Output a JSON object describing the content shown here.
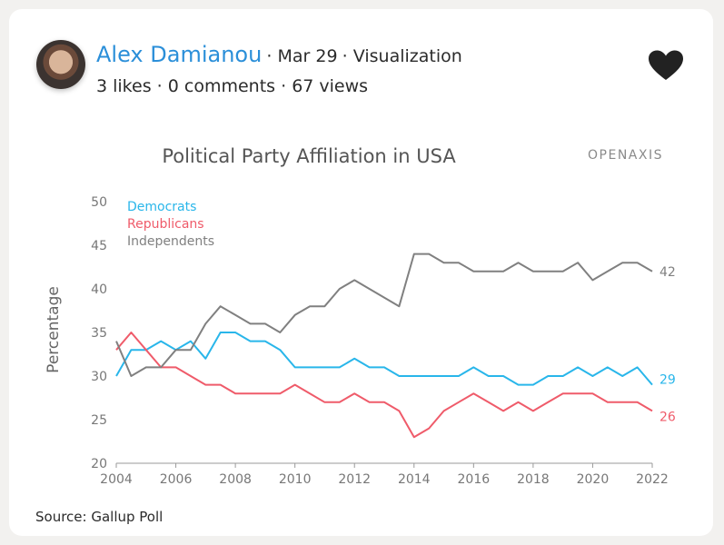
{
  "post": {
    "author": "Alex Damianou",
    "date": "Mar 29",
    "category": "Visualization",
    "likes": "3 likes",
    "comments": "0 comments",
    "views": "67 views",
    "source": "Source: Gallup Poll"
  },
  "icons": {
    "avatar": "author-avatar",
    "like": "heart-icon"
  },
  "colors": {
    "author_link": "#2b8fd9",
    "democrats": "#29b6ea",
    "republicans": "#ef5b6a",
    "independents": "#808080",
    "heart": "#222222"
  },
  "chart_data": {
    "type": "line",
    "title": "Political Party Affiliation in USA",
    "brand": "OPENAXIS",
    "xlabel": "",
    "ylabel": "Percentage",
    "xlim": [
      2004,
      2022
    ],
    "ylim": [
      20,
      50
    ],
    "xticks": [
      "2004",
      "2006",
      "2008",
      "2010",
      "2012",
      "2014",
      "2016",
      "2018",
      "2020",
      "2022"
    ],
    "yticks": [
      "20",
      "25",
      "30",
      "35",
      "40",
      "45",
      "50"
    ],
    "legend_position": "top-left",
    "x": [
      2004,
      2004.5,
      2005,
      2005.5,
      2006,
      2006.5,
      2007,
      2007.5,
      2008,
      2008.5,
      2009,
      2009.5,
      2010,
      2010.5,
      2011,
      2011.5,
      2012,
      2012.5,
      2013,
      2013.5,
      2014,
      2014.5,
      2015,
      2015.5,
      2016,
      2016.5,
      2017,
      2017.5,
      2018,
      2018.5,
      2019,
      2019.5,
      2020,
      2020.5,
      2021,
      2021.5,
      2022
    ],
    "series": [
      {
        "name": "Democrats",
        "color": "#29b6ea",
        "end_label": "29",
        "values": [
          30,
          33,
          33,
          34,
          33,
          34,
          32,
          35,
          35,
          34,
          34,
          33,
          31,
          31,
          31,
          31,
          32,
          31,
          31,
          30,
          30,
          30,
          30,
          30,
          31,
          30,
          30,
          29,
          29,
          30,
          30,
          31,
          30,
          31,
          30,
          31,
          29
        ]
      },
      {
        "name": "Republicans",
        "color": "#ef5b6a",
        "end_label": "26",
        "values": [
          33,
          35,
          33,
          31,
          31,
          30,
          29,
          29,
          28,
          28,
          28,
          28,
          29,
          28,
          27,
          27,
          28,
          27,
          27,
          26,
          23,
          24,
          26,
          27,
          28,
          27,
          26,
          27,
          26,
          27,
          28,
          28,
          28,
          27,
          27,
          27,
          26
        ]
      },
      {
        "name": "Independents",
        "color": "#808080",
        "end_label": "42",
        "values": [
          34,
          30,
          31,
          31,
          33,
          33,
          36,
          38,
          37,
          36,
          36,
          35,
          37,
          38,
          38,
          40,
          41,
          40,
          39,
          38,
          44,
          44,
          43,
          43,
          42,
          42,
          42,
          43,
          42,
          42,
          42,
          43,
          41,
          42,
          43,
          43,
          42
        ]
      }
    ]
  }
}
